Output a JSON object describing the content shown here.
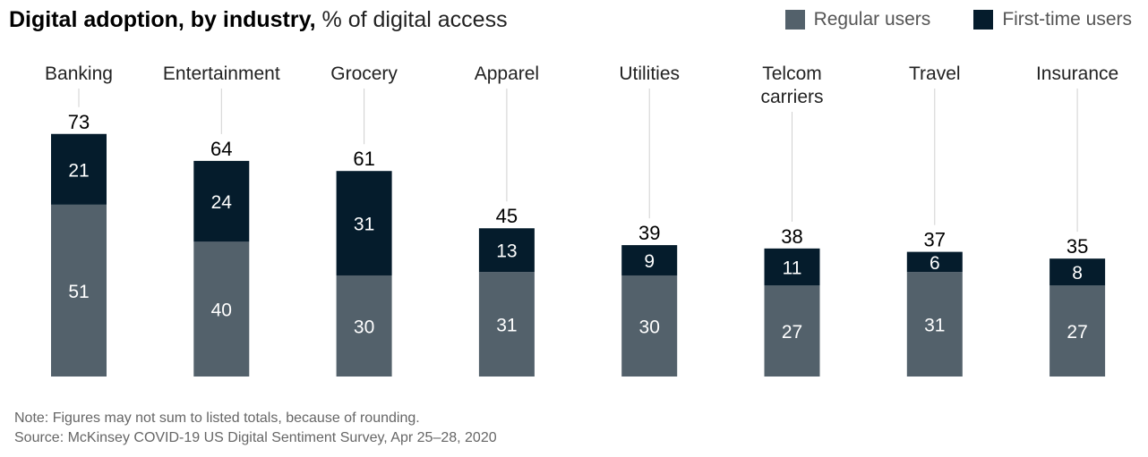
{
  "chart_data": {
    "type": "bar",
    "stacked": true,
    "title": "Digital adoption, by industry,",
    "subtitle": "% of digital access",
    "categories": [
      "Banking",
      "Entertainment",
      "Grocery",
      "Apparel",
      "Utilities",
      "Telcom carriers",
      "Travel",
      "Insurance"
    ],
    "series": [
      {
        "name": "Regular users",
        "color": "#53616b",
        "values": [
          51,
          40,
          30,
          31,
          30,
          27,
          31,
          27
        ]
      },
      {
        "name": "First-time users",
        "color": "#051c2c",
        "values": [
          21,
          24,
          31,
          13,
          9,
          11,
          6,
          8
        ]
      }
    ],
    "totals": [
      73,
      64,
      61,
      45,
      39,
      38,
      37,
      35
    ],
    "ylim": [
      0,
      73
    ],
    "grid": false,
    "legend_position": "top-right"
  },
  "notes": {
    "note": "Note: Figures may not sum to listed totals, because of rounding.",
    "source": "Source: McKinsey COVID-19 US Digital Sentiment Survey, Apr 25–28, 2020"
  }
}
